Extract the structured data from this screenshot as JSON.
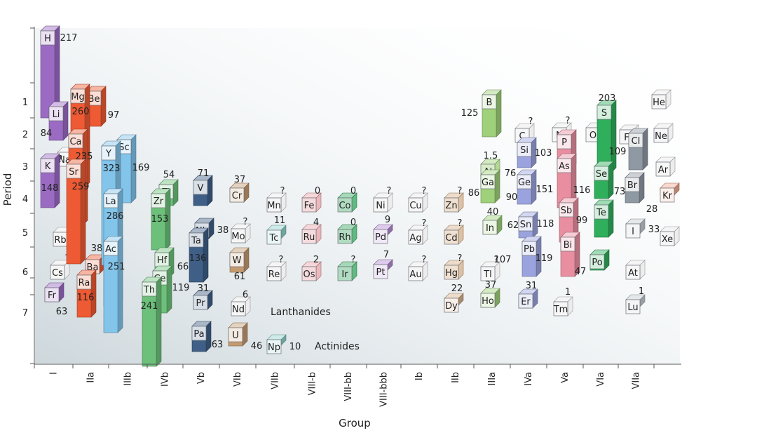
{
  "chart_data": {
    "type": "bar",
    "title": "",
    "xlabel": "Group",
    "ylabel": "Period",
    "x_ticks": [
      "I",
      "IIa",
      "IIIb",
      "IVb",
      "Vb",
      "VIb",
      "VIIb",
      "VIII-b",
      "VIII-bb",
      "VIII-bbb",
      "Ib",
      "IIb",
      "IIIa",
      "IVa",
      "Va",
      "VIa",
      "VIIa"
    ],
    "y_ticks": [
      "1",
      "2",
      "3",
      "4",
      "5",
      "6",
      "7"
    ],
    "annotations": [
      "Lanthanides",
      "Actinides"
    ],
    "elements": [
      {
        "symbol": "H",
        "value": "217"
      },
      {
        "symbol": "Li",
        "value": "84"
      },
      {
        "symbol": "Na",
        "value": "?"
      },
      {
        "symbol": "K",
        "value": "148"
      },
      {
        "symbol": "Rb",
        "value": "?"
      },
      {
        "symbol": "Cs",
        "value": "?"
      },
      {
        "symbol": "Fr",
        "value": "63"
      },
      {
        "symbol": "Be",
        "value": "97"
      },
      {
        "symbol": "Mg",
        "value": "260"
      },
      {
        "symbol": "Ca",
        "value": "235"
      },
      {
        "symbol": "Sr",
        "value": "259"
      },
      {
        "symbol": "Ba",
        "value": "38"
      },
      {
        "symbol": "Ra",
        "value": "116"
      },
      {
        "symbol": "Sc",
        "value": "169"
      },
      {
        "symbol": "Y",
        "value": "323"
      },
      {
        "symbol": "La",
        "value": "286"
      },
      {
        "symbol": "Ac",
        "value": "251"
      },
      {
        "symbol": "Ti",
        "value": "54"
      },
      {
        "symbol": "Zr",
        "value": "153"
      },
      {
        "symbol": "Hf",
        "value": "66"
      },
      {
        "symbol": "Ce",
        "value": "119"
      },
      {
        "symbol": "Th",
        "value": "241"
      },
      {
        "symbol": "V",
        "value": "71"
      },
      {
        "symbol": "Nb",
        "value": "38"
      },
      {
        "symbol": "Ta",
        "value": "136"
      },
      {
        "symbol": "Pr",
        "value": "31"
      },
      {
        "symbol": "Pa",
        "value": "63"
      },
      {
        "symbol": "Cr",
        "value": "37"
      },
      {
        "symbol": "Mo",
        "value": "?"
      },
      {
        "symbol": "W",
        "value": "61"
      },
      {
        "symbol": "Nd",
        "value": "6"
      },
      {
        "symbol": "U",
        "value": "46"
      },
      {
        "symbol": "Mn",
        "value": "?"
      },
      {
        "symbol": "Tc",
        "value": "11"
      },
      {
        "symbol": "Re",
        "value": "?"
      },
      {
        "symbol": "Np",
        "value": "10"
      },
      {
        "symbol": "Fe",
        "value": "0"
      },
      {
        "symbol": "Ru",
        "value": "4"
      },
      {
        "symbol": "Os",
        "value": "2"
      },
      {
        "symbol": "Co",
        "value": "0"
      },
      {
        "symbol": "Rh",
        "value": "0"
      },
      {
        "symbol": "Ir",
        "value": "?"
      },
      {
        "symbol": "Ni",
        "value": "?"
      },
      {
        "symbol": "Pd",
        "value": "9"
      },
      {
        "symbol": "Pt",
        "value": "7"
      },
      {
        "symbol": "Cu",
        "value": "?"
      },
      {
        "symbol": "Ag",
        "value": "?"
      },
      {
        "symbol": "Au",
        "value": "?"
      },
      {
        "symbol": "Zn",
        "value": "?"
      },
      {
        "symbol": "Cd",
        "value": "?"
      },
      {
        "symbol": "Hg",
        "value": "?"
      },
      {
        "symbol": "Dy",
        "value": "22"
      },
      {
        "symbol": "B",
        "value": "125"
      },
      {
        "symbol": "Al",
        "value": "1.5"
      },
      {
        "symbol": "Ga",
        "value": "86"
      },
      {
        "symbol": "In",
        "value": "40"
      },
      {
        "symbol": "Tl",
        "value": "?"
      },
      {
        "symbol": "Ho",
        "value": "37"
      },
      {
        "symbol": "C",
        "value": "?"
      },
      {
        "symbol": "Si",
        "value": "76"
      },
      {
        "symbol": "Ge",
        "value": "90"
      },
      {
        "symbol": "Sn",
        "value": "62"
      },
      {
        "symbol": "Pb",
        "value": "107"
      },
      {
        "symbol": "Er",
        "value": "31"
      },
      {
        "symbol": "N",
        "value": "?"
      },
      {
        "symbol": "P",
        "value": "103"
      },
      {
        "symbol": "As",
        "value": "151"
      },
      {
        "symbol": "Sb",
        "value": "118"
      },
      {
        "symbol": "Bi",
        "value": "119"
      },
      {
        "symbol": "Tm",
        "value": "1"
      },
      {
        "symbol": "O",
        "value": "?"
      },
      {
        "symbol": "S",
        "value": "203"
      },
      {
        "symbol": "Se",
        "value": "116"
      },
      {
        "symbol": "Te",
        "value": "99"
      },
      {
        "symbol": "Po",
        "value": "47"
      },
      {
        "symbol": "F",
        "value": ""
      },
      {
        "symbol": "Cl",
        "value": "109"
      },
      {
        "symbol": "Br",
        "value": "73"
      },
      {
        "symbol": "I",
        "value": "33"
      },
      {
        "symbol": "At",
        "value": ""
      },
      {
        "symbol": "Lu",
        "value": "1"
      },
      {
        "symbol": "He",
        "value": ""
      },
      {
        "symbol": "Ne",
        "value": ""
      },
      {
        "symbol": "Ar",
        "value": ""
      },
      {
        "symbol": "Kr",
        "value": "28"
      },
      {
        "symbol": "Xe",
        "value": ""
      }
    ],
    "colors": {
      "purple": "#9b6bc4",
      "orange": "#ee5a33",
      "blue": "#82c4ea",
      "green": "#6cc07a",
      "navy": "#3f5f86",
      "tan": "#c49a70",
      "teal": "#8fd3cc",
      "pink": "#e9a6ac",
      "darkgreen": "#3aa864",
      "lavender": "#b48cd2",
      "light": "#e8e8ea",
      "tanlight": "#d6b18c",
      "lime": "#9fd07a",
      "periwinkle": "#9aa3dd",
      "rose": "#e88ea0",
      "emerald": "#2fae5c",
      "slate": "#8f99a4",
      "gray": "#c4cbd2",
      "salmon": "#f2a890",
      "background": "#d9e1e6"
    }
  }
}
